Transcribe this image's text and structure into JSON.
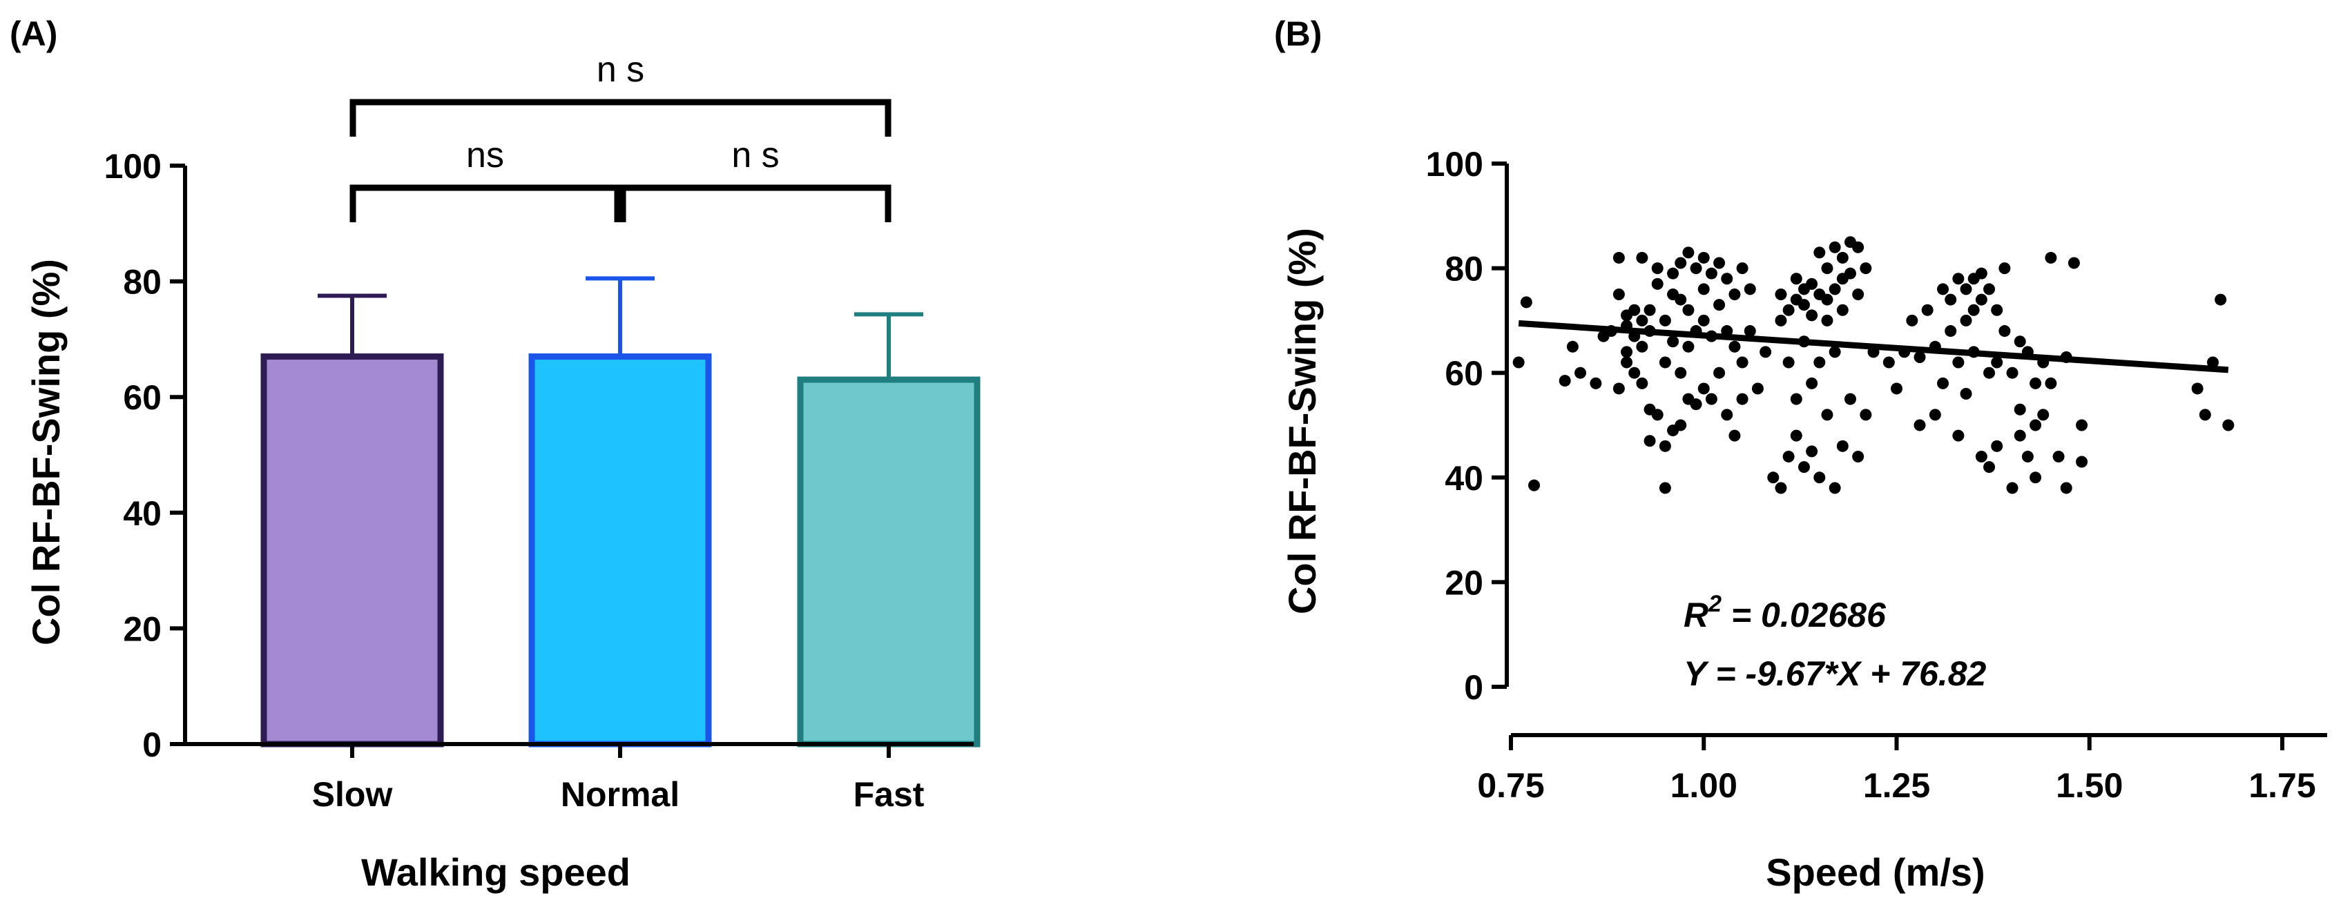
{
  "chart_data": [
    {
      "panel_label": "(A)",
      "type": "bar",
      "categories": [
        "Slow",
        "Normal",
        "Fast"
      ],
      "values": [
        67,
        67,
        63
      ],
      "error_upper": [
        77.5,
        80.5,
        74.3
      ],
      "colors": {
        "fill": [
          "#A48AD3",
          "#1EC2FF",
          "#6EC8CC"
        ],
        "stroke": [
          "#2E1D55",
          "#1B54E8",
          "#1F7F80"
        ]
      },
      "xlabel": "Walking speed",
      "ylabel": "Col RF-BF-Swing (%)",
      "ylim": [
        0,
        100
      ],
      "yticks": [
        0,
        20,
        40,
        60,
        80,
        100
      ],
      "significance": [
        {
          "from": 1,
          "to": 2,
          "label": "ns"
        },
        {
          "from": 2,
          "to": 3,
          "label": "n s"
        },
        {
          "from": 1,
          "to": 3,
          "label": "n s"
        }
      ]
    },
    {
      "panel_label": "(B)",
      "type": "scatter",
      "xlabel": "Speed (m/s)",
      "ylabel": "Col RF-BF-Swing (%)",
      "xlim": [
        0.75,
        1.75
      ],
      "ylim": [
        0,
        100
      ],
      "xticks": [
        "0.75",
        "1.00",
        "1.25",
        "1.50",
        "1.75"
      ],
      "yticks": [
        "0",
        "20",
        "40",
        "60",
        "80",
        "100"
      ],
      "regression": {
        "slope": -9.67,
        "intercept": 76.82,
        "x_range": [
          0.76,
          1.68
        ]
      },
      "annotations": {
        "r2_label": "R",
        "r2_sup": "2",
        "r2_value": " = 0.02686",
        "equation": "Y = -9.67*X + 76.82"
      },
      "points": [
        [
          0.76,
          62
        ],
        [
          0.77,
          73.5
        ],
        [
          0.78,
          38.5
        ],
        [
          0.82,
          58.5
        ],
        [
          0.83,
          65
        ],
        [
          0.84,
          60
        ],
        [
          0.86,
          58
        ],
        [
          0.87,
          67
        ],
        [
          0.88,
          68
        ],
        [
          0.89,
          82
        ],
        [
          0.89,
          75
        ],
        [
          0.89,
          57
        ],
        [
          0.9,
          71
        ],
        [
          0.9,
          69
        ],
        [
          0.9,
          64
        ],
        [
          0.9,
          62
        ],
        [
          0.91,
          72
        ],
        [
          0.91,
          67
        ],
        [
          0.91,
          60
        ],
        [
          0.92,
          82
        ],
        [
          0.92,
          70
        ],
        [
          0.92,
          65
        ],
        [
          0.92,
          58
        ],
        [
          0.93,
          68
        ],
        [
          0.93,
          72
        ],
        [
          0.93,
          53
        ],
        [
          0.93,
          47
        ],
        [
          0.94,
          80
        ],
        [
          0.94,
          77
        ],
        [
          0.94,
          52
        ],
        [
          0.95,
          70
        ],
        [
          0.95,
          62
        ],
        [
          0.95,
          46
        ],
        [
          0.95,
          38
        ],
        [
          0.96,
          79
        ],
        [
          0.96,
          75
        ],
        [
          0.96,
          66
        ],
        [
          0.96,
          49
        ],
        [
          0.97,
          81
        ],
        [
          0.97,
          74
        ],
        [
          0.97,
          60
        ],
        [
          0.97,
          50
        ],
        [
          0.98,
          83
        ],
        [
          0.98,
          72
        ],
        [
          0.98,
          65
        ],
        [
          0.98,
          55
        ],
        [
          0.99,
          80
        ],
        [
          0.99,
          68
        ],
        [
          0.99,
          54
        ],
        [
          1.0,
          82
        ],
        [
          1.0,
          76
        ],
        [
          1.0,
          70
        ],
        [
          1.0,
          57
        ],
        [
          1.01,
          79
        ],
        [
          1.01,
          67
        ],
        [
          1.01,
          55
        ],
        [
          1.02,
          81
        ],
        [
          1.02,
          73
        ],
        [
          1.02,
          60
        ],
        [
          1.03,
          78
        ],
        [
          1.03,
          68
        ],
        [
          1.03,
          52
        ],
        [
          1.04,
          75
        ],
        [
          1.04,
          65
        ],
        [
          1.04,
          48
        ],
        [
          1.05,
          80
        ],
        [
          1.05,
          62
        ],
        [
          1.05,
          55
        ],
        [
          1.06,
          76
        ],
        [
          1.06,
          68
        ],
        [
          1.07,
          57
        ],
        [
          1.08,
          64
        ],
        [
          1.09,
          40
        ],
        [
          1.1,
          75
        ],
        [
          1.1,
          70
        ],
        [
          1.1,
          38
        ],
        [
          1.11,
          72
        ],
        [
          1.11,
          62
        ],
        [
          1.11,
          44
        ],
        [
          1.12,
          78
        ],
        [
          1.12,
          74
        ],
        [
          1.12,
          55
        ],
        [
          1.12,
          48
        ],
        [
          1.13,
          76
        ],
        [
          1.13,
          73
        ],
        [
          1.13,
          66
        ],
        [
          1.13,
          42
        ],
        [
          1.14,
          77
        ],
        [
          1.14,
          71
        ],
        [
          1.14,
          58
        ],
        [
          1.14,
          45
        ],
        [
          1.15,
          83
        ],
        [
          1.15,
          75
        ],
        [
          1.15,
          62
        ],
        [
          1.15,
          40
        ],
        [
          1.16,
          80
        ],
        [
          1.16,
          74
        ],
        [
          1.16,
          70
        ],
        [
          1.16,
          52
        ],
        [
          1.17,
          84
        ],
        [
          1.17,
          76
        ],
        [
          1.17,
          64
        ],
        [
          1.17,
          38
        ],
        [
          1.18,
          82
        ],
        [
          1.18,
          78
        ],
        [
          1.18,
          72
        ],
        [
          1.18,
          46
        ],
        [
          1.19,
          85
        ],
        [
          1.19,
          79
        ],
        [
          1.19,
          55
        ],
        [
          1.2,
          84
        ],
        [
          1.2,
          75
        ],
        [
          1.2,
          44
        ],
        [
          1.21,
          80
        ],
        [
          1.21,
          52
        ],
        [
          1.22,
          64
        ],
        [
          1.24,
          62
        ],
        [
          1.25,
          57
        ],
        [
          1.26,
          64
        ],
        [
          1.27,
          70
        ],
        [
          1.28,
          63
        ],
        [
          1.28,
          50
        ],
        [
          1.29,
          72
        ],
        [
          1.3,
          65
        ],
        [
          1.3,
          52
        ],
        [
          1.31,
          76
        ],
        [
          1.31,
          58
        ],
        [
          1.32,
          74
        ],
        [
          1.32,
          68
        ],
        [
          1.33,
          78
        ],
        [
          1.33,
          62
        ],
        [
          1.33,
          48
        ],
        [
          1.34,
          76
        ],
        [
          1.34,
          70
        ],
        [
          1.34,
          56
        ],
        [
          1.35,
          78
        ],
        [
          1.35,
          72
        ],
        [
          1.35,
          64
        ],
        [
          1.36,
          79
        ],
        [
          1.36,
          74
        ],
        [
          1.36,
          44
        ],
        [
          1.37,
          76
        ],
        [
          1.37,
          60
        ],
        [
          1.37,
          42
        ],
        [
          1.38,
          72
        ],
        [
          1.38,
          62
        ],
        [
          1.38,
          46
        ],
        [
          1.39,
          80
        ],
        [
          1.39,
          68
        ],
        [
          1.4,
          60
        ],
        [
          1.4,
          38
        ],
        [
          1.41,
          66
        ],
        [
          1.41,
          53
        ],
        [
          1.41,
          48
        ],
        [
          1.42,
          64
        ],
        [
          1.42,
          44
        ],
        [
          1.43,
          58
        ],
        [
          1.43,
          50
        ],
        [
          1.43,
          40
        ],
        [
          1.44,
          62
        ],
        [
          1.44,
          52
        ],
        [
          1.45,
          58
        ],
        [
          1.45,
          82
        ],
        [
          1.46,
          44
        ],
        [
          1.47,
          38
        ],
        [
          1.47,
          63
        ],
        [
          1.48,
          81
        ],
        [
          1.49,
          50
        ],
        [
          1.49,
          43
        ],
        [
          1.64,
          57
        ],
        [
          1.65,
          52
        ],
        [
          1.66,
          62
        ],
        [
          1.67,
          74
        ],
        [
          1.68,
          50
        ]
      ]
    }
  ]
}
